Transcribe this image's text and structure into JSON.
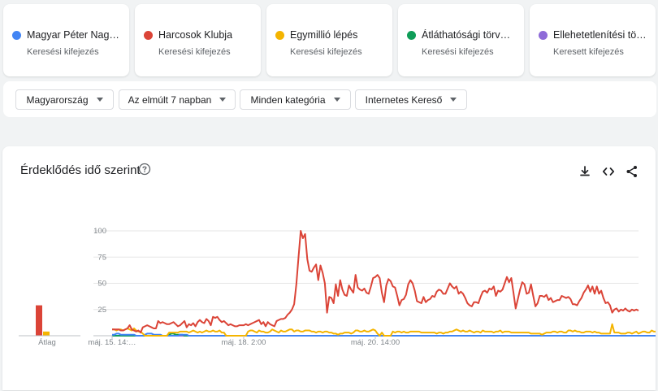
{
  "terms": [
    {
      "name": "Magyar Péter Nag…",
      "type": "Keresési kifejezés",
      "color": "#4285f4"
    },
    {
      "name": "Harcosok Klubja",
      "type": "Keresési kifejezés",
      "color": "#db4437"
    },
    {
      "name": "Egymillió lépés",
      "type": "Keresési kifejezés",
      "color": "#f4b400"
    },
    {
      "name": "Átláthatósági törv…",
      "type": "Keresési kifejezés",
      "color": "#0f9d58"
    },
    {
      "name": "Ellehetetlenítési tö…",
      "type": "Keresett kifejezés",
      "color": "#8e6bd8"
    }
  ],
  "filters": {
    "region": "Magyarország",
    "period": "Az elmúlt 7 napban",
    "category": "Minden kategória",
    "property": "Internetes Kereső"
  },
  "chart_header": {
    "title": "Érdeklődés idő szerint",
    "help_icon": "help-circle-icon",
    "download_icon": "download-icon",
    "embed_icon": "embed-code-icon",
    "share_icon": "share-icon"
  },
  "chart_data": {
    "type": "line",
    "title": "Érdeklődés idő szerint",
    "ylim": [
      0,
      100
    ],
    "y_ticks": [
      25,
      50,
      75,
      100
    ],
    "grid": true,
    "x_tick_labels": [
      {
        "label": "máj. 15. 14:…",
        "index": 0
      },
      {
        "label": "máj. 18. 2:00",
        "index": 60
      },
      {
        "label": "máj. 20. 14:00",
        "index": 120
      }
    ],
    "average_label": "Átlag",
    "series": [
      {
        "name": "Harcosok Klubja",
        "color": "#db4437",
        "average": 29,
        "values": [
          6,
          6,
          6,
          6,
          5,
          5,
          6,
          7,
          10,
          6,
          5,
          4,
          5,
          3,
          8,
          9,
          10,
          9,
          8,
          7,
          7,
          14,
          12,
          13,
          12,
          11,
          11,
          12,
          13,
          11,
          9,
          10,
          12,
          14,
          8,
          11,
          10,
          12,
          9,
          13,
          15,
          13,
          12,
          16,
          14,
          10,
          18,
          17,
          18,
          15,
          13,
          14,
          12,
          10,
          11,
          10,
          9,
          9,
          10,
          10,
          10,
          11,
          10,
          11,
          12,
          13,
          14,
          15,
          11,
          13,
          9,
          13,
          11,
          10,
          9,
          14,
          15,
          16,
          16,
          17,
          20,
          22,
          25,
          30,
          49,
          75,
          100,
          93,
          97,
          73,
          62,
          61,
          65,
          68,
          53,
          67,
          60,
          50,
          22,
          37,
          36,
          31,
          49,
          38,
          53,
          44,
          39,
          38,
          48,
          44,
          41,
          58,
          46,
          44,
          43,
          45,
          41,
          40,
          47,
          55,
          56,
          58,
          55,
          41,
          32,
          48,
          54,
          52,
          47,
          46,
          38,
          29,
          34,
          35,
          39,
          49,
          53,
          50,
          43,
          33,
          32,
          31,
          37,
          32,
          34,
          35,
          38,
          37,
          42,
          44,
          43,
          40,
          40,
          45,
          50,
          47,
          45,
          47,
          40,
          42,
          40,
          36,
          31,
          29,
          28,
          32,
          32,
          31,
          37,
          42,
          43,
          41,
          45,
          44,
          47,
          38,
          43,
          42,
          44,
          50,
          56,
          51,
          55,
          41,
          26,
          35,
          44,
          51,
          49,
          40,
          41,
          49,
          38,
          28,
          31,
          38,
          38,
          37,
          39,
          34,
          36,
          32,
          33,
          34,
          34,
          38,
          37,
          36,
          37,
          35,
          30,
          30,
          29,
          33,
          36,
          41,
          44,
          48,
          42,
          47,
          40,
          47,
          40,
          43,
          36,
          31,
          32,
          29,
          22,
          25,
          26,
          23,
          25,
          24,
          26,
          24,
          23,
          25,
          24,
          25,
          24
        ]
      },
      {
        "name": "Egymillió lépés",
        "color": "#f4b400",
        "average": 4,
        "values": [
          6,
          6,
          5,
          6,
          6,
          5,
          6,
          7,
          6,
          5,
          7,
          5,
          4,
          4,
          2,
          0,
          0,
          0,
          0,
          0,
          0,
          0,
          0,
          0,
          0,
          0,
          3,
          3,
          3,
          3,
          3,
          4,
          4,
          4,
          4,
          3,
          4,
          5,
          4,
          3,
          4,
          3,
          4,
          5,
          4,
          4,
          5,
          4,
          4,
          5,
          3,
          3,
          0,
          0,
          0,
          0,
          0,
          0,
          0,
          0,
          0,
          0,
          4,
          5,
          5,
          4,
          3,
          5,
          4,
          4,
          3,
          3,
          4,
          6,
          5,
          4,
          3,
          5,
          4,
          4,
          5,
          6,
          6,
          4,
          5,
          5,
          4,
          4,
          5,
          5,
          5,
          4,
          4,
          3,
          4,
          4,
          3,
          4,
          4,
          3,
          3,
          2,
          2,
          1,
          2,
          2,
          3,
          3,
          3,
          2,
          3,
          5,
          5,
          4,
          4,
          5,
          4,
          4,
          5,
          6,
          5,
          2,
          0,
          3,
          0,
          0,
          0,
          0,
          4,
          3,
          4,
          4,
          3,
          4,
          3,
          3,
          4,
          4,
          4,
          4,
          4,
          3,
          3,
          3,
          3,
          3,
          3,
          3,
          2,
          3,
          3,
          2,
          3,
          3,
          4,
          4,
          5,
          6,
          5,
          4,
          5,
          4,
          4,
          5,
          4,
          3,
          4,
          4,
          3,
          5,
          4,
          4,
          4,
          4,
          3,
          4,
          4,
          5,
          3,
          4,
          4,
          4,
          3,
          3,
          3,
          3,
          3,
          3,
          3,
          3,
          3,
          2,
          2,
          2,
          2,
          2,
          1,
          2,
          3,
          3,
          3,
          4,
          4,
          3,
          4,
          4,
          3,
          3,
          5,
          5,
          4,
          5,
          4,
          4,
          3,
          3,
          4,
          4,
          4,
          3,
          4,
          3,
          3,
          2,
          2,
          2,
          2,
          2,
          11,
          3,
          3,
          3,
          2,
          2,
          2,
          3,
          3,
          2,
          3,
          4,
          2,
          3,
          4,
          4,
          3,
          3,
          5,
          4,
          4,
          5,
          5,
          5,
          3,
          4
        ]
      },
      {
        "name": "Magyar Péter Nag…",
        "color": "#4285f4",
        "average": 0,
        "values": [
          1,
          1,
          2,
          2,
          1,
          1,
          1,
          1,
          1,
          1,
          1,
          0,
          0,
          0,
          0,
          1,
          2,
          2,
          2,
          1,
          1,
          1,
          1,
          0,
          0,
          0,
          0,
          0,
          0,
          0,
          0,
          1,
          1,
          1,
          1,
          0,
          0,
          0,
          0,
          0,
          0,
          0,
          0,
          0,
          0,
          0,
          0,
          0,
          0,
          0,
          0,
          0,
          0,
          0,
          0,
          0,
          0,
          0,
          0,
          0,
          0,
          0,
          0,
          0,
          0,
          0,
          0,
          0,
          0,
          0,
          0,
          0,
          0,
          0,
          0,
          0,
          0,
          0,
          0,
          0,
          0,
          0,
          0,
          0,
          0,
          0,
          0,
          0,
          0,
          0,
          0,
          0,
          0,
          0,
          0,
          0,
          0,
          0,
          0,
          0,
          0,
          0,
          0,
          0,
          0,
          0,
          0,
          0,
          0,
          0,
          0,
          0,
          0,
          0,
          0,
          0,
          0,
          0,
          0,
          0,
          0,
          0,
          0,
          0,
          0,
          0,
          0,
          0,
          0,
          0,
          0,
          0,
          0,
          0,
          0,
          0,
          0,
          0,
          0,
          0,
          0,
          0,
          0,
          0,
          0,
          0,
          0,
          0,
          0,
          0,
          0,
          0,
          0,
          0,
          0,
          0,
          0,
          0,
          0,
          0,
          0,
          0,
          0,
          0,
          0,
          0,
          0,
          0,
          0,
          0,
          0,
          0,
          0,
          0,
          0,
          0,
          0,
          0,
          0,
          0,
          0,
          0,
          0,
          0,
          0,
          0,
          0,
          0,
          0,
          0,
          0,
          0,
          0,
          0,
          0,
          0,
          0,
          0,
          0,
          0,
          0,
          0,
          0,
          0,
          0,
          0,
          0,
          0,
          0,
          0,
          0,
          0,
          0,
          0,
          0,
          0,
          0,
          0,
          0,
          0,
          0,
          0,
          0,
          0,
          0,
          0,
          0,
          0,
          0,
          0,
          0,
          0,
          0,
          0,
          0,
          0,
          0,
          0,
          0,
          0,
          0,
          0,
          0,
          0,
          0,
          0,
          0,
          0,
          0,
          0,
          0,
          0,
          0,
          0,
          0,
          0,
          0,
          0,
          0,
          0,
          0,
          0,
          0,
          0,
          0,
          0,
          0,
          0,
          0,
          0,
          0,
          0
        ]
      },
      {
        "name": "Átláthatósági törv…",
        "color": "#0f9d58",
        "average": 0,
        "values": [
          0,
          0,
          0,
          0,
          0,
          0,
          0,
          0,
          0,
          0,
          0,
          0,
          0,
          0,
          0,
          0,
          0,
          0,
          0,
          0,
          0,
          0,
          0,
          0,
          0,
          0,
          1,
          2,
          2,
          1,
          1,
          1,
          1,
          0,
          0,
          0,
          0,
          0,
          0,
          0,
          0,
          0,
          0,
          0,
          0,
          0,
          0,
          0,
          0,
          0,
          0,
          0,
          0,
          0,
          0,
          0,
          0,
          0,
          0,
          0,
          0,
          0,
          0,
          0,
          0,
          0,
          0,
          0,
          0,
          0,
          0,
          0,
          0,
          0,
          0,
          0,
          0,
          0,
          0,
          0,
          0,
          0,
          0,
          0,
          0,
          0,
          0,
          0,
          0,
          0,
          0,
          0,
          0,
          0,
          0,
          0,
          0,
          0,
          0,
          0,
          0,
          0,
          0,
          0,
          0,
          0,
          0,
          0,
          0,
          0,
          0,
          0,
          0,
          0,
          0,
          0,
          0,
          0,
          0,
          0,
          0,
          0,
          0,
          0,
          0,
          0,
          0,
          0,
          0,
          0,
          0,
          0,
          0,
          0,
          0,
          0,
          0,
          0,
          0,
          0,
          0,
          0,
          0,
          0,
          0,
          0,
          0,
          0,
          0,
          0,
          0,
          0,
          0,
          0,
          0,
          0,
          0,
          0,
          0,
          0,
          0,
          0,
          0,
          0,
          0,
          0,
          0,
          0,
          0,
          0,
          0,
          0,
          0,
          0,
          0,
          0,
          0,
          0,
          0,
          0,
          0,
          0,
          0,
          0,
          0,
          0,
          0,
          0,
          0,
          0,
          0,
          0,
          0,
          0,
          0,
          0,
          0,
          0,
          0,
          0,
          0,
          0,
          0,
          0,
          0,
          0,
          0,
          0,
          0,
          0,
          0,
          0,
          0,
          0,
          0,
          0,
          0,
          0,
          0,
          0,
          0,
          0,
          0,
          0,
          0,
          0,
          0,
          0,
          0,
          0,
          0,
          0,
          0,
          0,
          0,
          0,
          0,
          0,
          0,
          0,
          0,
          0,
          0,
          0,
          0,
          0,
          0,
          0,
          0,
          0,
          0,
          0,
          0,
          0,
          0,
          0,
          0,
          0,
          0,
          0,
          0,
          0,
          0,
          0,
          0,
          0,
          0,
          0,
          0,
          0,
          0,
          0,
          0,
          0
        ]
      },
      {
        "name": "Ellehetetlenítési tö…",
        "color": "#8e6bd8",
        "average": 0,
        "values": [
          0,
          0,
          0,
          0,
          0,
          0,
          0,
          0,
          0,
          0,
          0,
          0,
          0,
          0,
          0,
          0,
          0,
          0,
          0,
          0,
          0,
          0,
          0,
          0,
          0,
          0,
          0,
          0,
          0,
          0,
          0,
          0,
          0,
          0,
          0,
          0,
          0,
          0,
          0,
          0,
          0,
          0,
          0,
          0,
          0,
          0,
          0,
          0,
          0,
          0,
          0,
          0,
          0,
          0,
          0,
          0,
          0,
          0,
          0,
          0,
          0,
          0,
          0,
          0,
          0,
          0,
          0,
          0,
          0,
          0,
          0,
          0,
          0,
          0,
          0,
          0,
          0,
          0,
          0,
          0,
          0,
          0,
          0,
          0,
          0,
          0,
          0,
          0,
          0,
          0,
          0,
          0,
          0,
          0,
          0,
          0,
          0,
          0,
          0,
          0,
          0,
          0,
          0,
          0,
          0,
          0,
          0,
          0,
          0,
          0,
          0,
          0,
          0,
          0,
          0,
          0,
          0,
          0,
          0,
          0,
          0,
          0,
          0,
          0,
          0,
          0,
          0,
          0,
          0,
          0,
          0,
          0,
          0,
          0,
          0,
          0,
          0,
          0,
          0,
          0,
          0,
          0,
          0,
          0,
          0,
          0,
          0,
          0,
          0,
          0,
          0,
          0,
          0,
          0,
          0,
          0,
          0,
          0,
          0,
          0,
          0,
          0,
          0,
          0,
          0,
          0,
          0,
          0,
          0,
          0,
          0,
          0,
          0,
          0,
          0,
          0,
          0,
          0,
          0,
          0,
          0,
          0,
          0,
          0,
          0,
          0,
          0,
          0,
          0,
          0,
          0,
          0,
          0,
          0,
          0,
          0,
          0,
          0,
          0,
          0,
          0,
          0,
          0,
          0,
          0,
          0,
          0,
          0,
          0,
          0,
          0,
          0,
          0,
          0,
          0,
          0,
          0,
          0,
          0,
          0,
          0,
          0,
          0,
          0,
          0,
          0,
          0,
          0,
          0,
          0,
          0,
          0,
          0,
          0,
          0,
          0,
          0,
          0,
          0,
          0,
          0,
          0,
          0,
          0,
          0,
          0,
          0,
          0,
          0,
          0,
          0,
          0,
          0,
          0,
          0,
          0,
          0,
          0,
          0,
          0,
          0,
          0,
          0,
          0,
          0,
          0,
          0,
          0,
          0,
          0,
          0,
          0,
          0,
          0,
          0
        ]
      }
    ]
  }
}
